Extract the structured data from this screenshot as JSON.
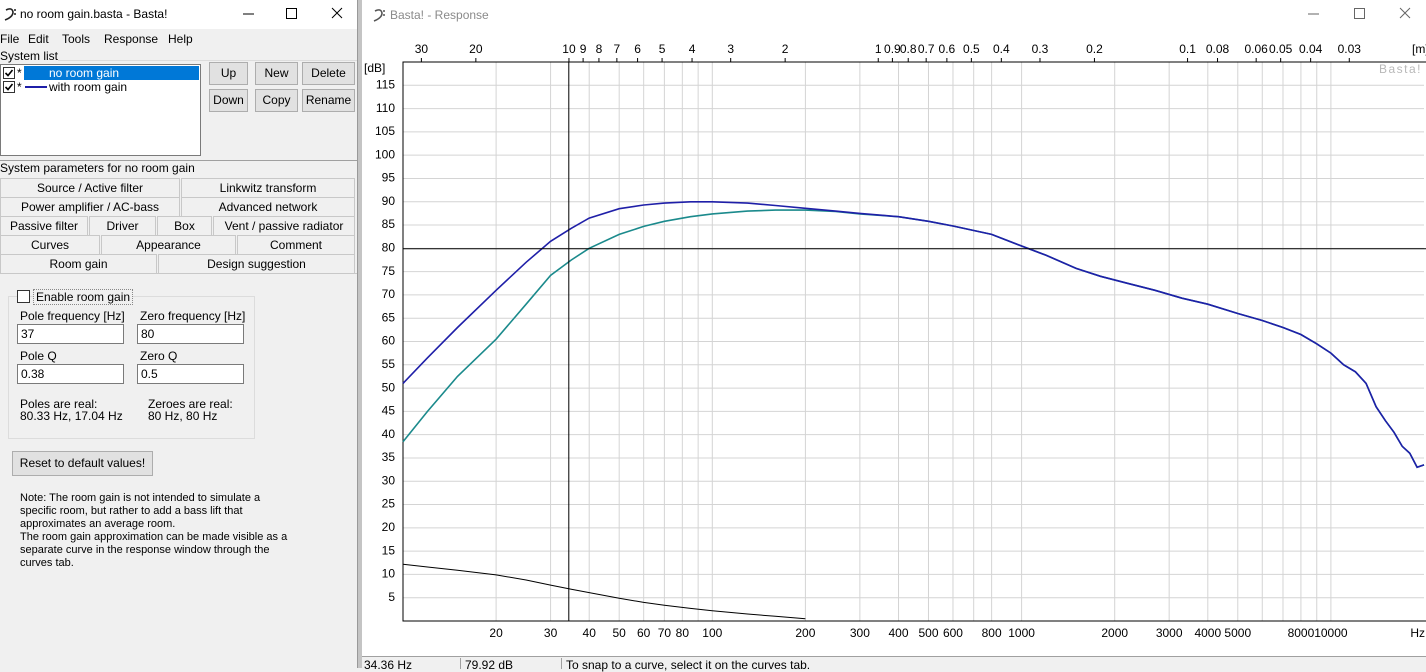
{
  "main_window": {
    "title": "no room gain.basta - Basta!",
    "menu": [
      "File",
      "Edit",
      "Tools",
      "Response",
      "Help"
    ],
    "system_list": {
      "label": "System list",
      "markers": [
        "*",
        "*"
      ],
      "checked": [
        true,
        true
      ],
      "buttons": [
        "Up",
        "New",
        "Delete",
        "Down",
        "Copy",
        "Rename"
      ]
    },
    "parameters_label": "System parameters for no room gain",
    "tabs": [
      [
        "Source / Active filter",
        "Linkwitz transform"
      ],
      [
        "Power amplifier / AC-bass",
        "Advanced network"
      ],
      [
        "Passive filter",
        "Driver",
        "Box",
        "Vent / passive radiator"
      ],
      [
        "Curves",
        "Appearance",
        "Comment"
      ],
      [
        "Room gain",
        "Design suggestion"
      ]
    ],
    "room_gain": {
      "enable_label": "Enable room gain",
      "enabled": false,
      "fields": [
        {
          "label": "Pole frequency [Hz]",
          "value": "37"
        },
        {
          "label": "Zero frequency [Hz]",
          "value": "80"
        },
        {
          "label": "Pole Q",
          "value": "0.38"
        },
        {
          "label": "Zero Q",
          "value": "0.5"
        }
      ],
      "poles_label": "Poles are real:",
      "poles": "80.33 Hz, 17.04 Hz",
      "zeroes_label": "Zeroes are real:",
      "zeroes": "80 Hz, 80 Hz",
      "reset": "Reset to default values!",
      "note": [
        "Note: The room gain is not intended to simulate a",
        "specific room, but rather to add a bass lift that",
        "approximates an average room.",
        "The room gain approximation can be made visible as a",
        "separate curve in the response window through the",
        "curves tab."
      ]
    }
  },
  "response_window": {
    "title": "Basta! - Response",
    "watermark": "Basta!",
    "status_message": "To snap to a curve, select it on the curves tab."
  },
  "chart_data": {
    "type": "line",
    "xscale": "log",
    "grid": true,
    "xlabel": "Hz",
    "ylabel": "[dB]",
    "x2label": "[m]",
    "xlim": [
      10,
      20000
    ],
    "ylim": [
      0,
      120
    ],
    "xticks": [
      20,
      30,
      40,
      50,
      60,
      70,
      80,
      100,
      200,
      300,
      400,
      500,
      600,
      800,
      1000,
      2000,
      3000,
      4000,
      5000,
      8000,
      10000
    ],
    "xminor": [
      90,
      700,
      6000,
      7000,
      9000
    ],
    "yticks": [
      5,
      10,
      15,
      20,
      25,
      30,
      35,
      40,
      45,
      50,
      55,
      60,
      65,
      70,
      75,
      80,
      85,
      90,
      95,
      100,
      105,
      110,
      115
    ],
    "x2lim": [
      34.4,
      0.0172
    ],
    "x2ticks": [
      30,
      20,
      10,
      9,
      8,
      7,
      6,
      5,
      4,
      3,
      2,
      1,
      0.9,
      0.8,
      0.7,
      0.6,
      0.5,
      0.4,
      0.3,
      0.2,
      0.1,
      0.08,
      0.06,
      0.05,
      0.04,
      0.03
    ],
    "cursor": {
      "x": 34.36,
      "y": 79.92,
      "x_label": "34.36 Hz",
      "y_label": "79.92 dB"
    },
    "x": [
      10,
      12,
      15,
      20,
      25,
      30,
      35,
      40,
      50,
      60,
      70,
      85,
      100,
      130,
      160,
      200,
      250,
      300,
      400,
      500,
      600,
      800,
      1000,
      1200,
      1500,
      1800,
      2200,
      2700,
      3300,
      4000,
      5000,
      6000,
      7000,
      8000,
      9000,
      10000,
      11000,
      12000,
      13000,
      14000,
      15000,
      16000,
      17000,
      18000,
      19000,
      20000
    ],
    "series": [
      {
        "name": "no room gain",
        "color": "#1b8a8c",
        "values": [
          38.5,
          45,
          52.5,
          60.5,
          68,
          74.2,
          77.5,
          80,
          83,
          84.7,
          85.8,
          86.8,
          87.4,
          88,
          88.2,
          88.2,
          87.9,
          87.4,
          86.8,
          85.8,
          84.8,
          83,
          80.5,
          78.5,
          75.7,
          74,
          72.5,
          71,
          69.3,
          68,
          66,
          64.5,
          63,
          61.5,
          59.5,
          57.5,
          55,
          53.5,
          51,
          46,
          43,
          40.5,
          37.5,
          36,
          33,
          33.5
        ]
      },
      {
        "name": "with room gain",
        "color": "#1f1fa8",
        "values": [
          51,
          56.5,
          63,
          71,
          77,
          81.5,
          84.3,
          86.5,
          88.5,
          89.3,
          89.7,
          90,
          90,
          89.7,
          89.2,
          88.6,
          88,
          87.5,
          86.8,
          85.8,
          84.8,
          83,
          80.5,
          78.5,
          75.7,
          74,
          72.5,
          71,
          69.3,
          68,
          66,
          64.5,
          63,
          61.5,
          59.5,
          57.5,
          55,
          53.5,
          51,
          46,
          43,
          40.5,
          37.5,
          36,
          33,
          33.5
        ]
      },
      {
        "color": "#000000",
        "values": [
          12.2,
          11.6,
          10.9,
          9.9,
          8.8,
          7.7,
          6.8,
          6.1,
          4.9,
          4,
          3.4,
          2.7,
          2.2,
          1.5,
          1,
          0.5,
          null,
          null,
          null,
          null,
          null,
          null,
          null,
          null,
          null,
          null,
          null,
          null,
          null,
          null,
          null,
          null,
          null,
          null,
          null,
          null,
          null,
          null,
          null,
          null,
          null,
          null,
          null,
          null,
          null,
          null
        ]
      }
    ]
  }
}
